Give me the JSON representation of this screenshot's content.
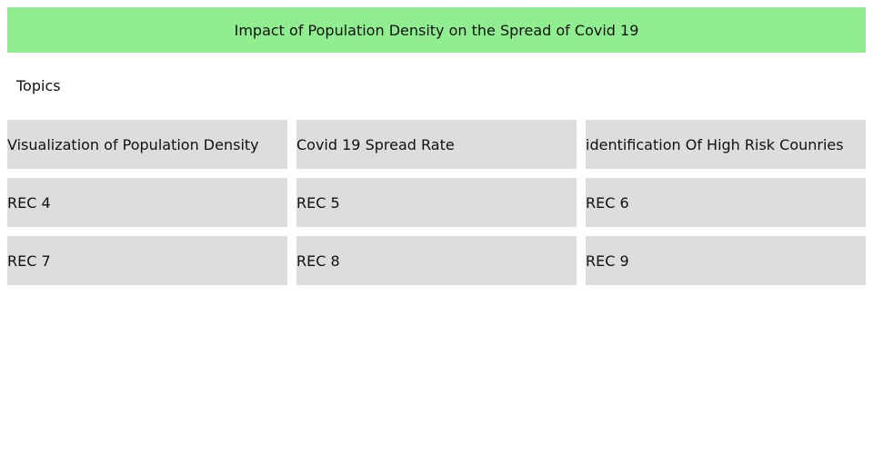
{
  "header": {
    "title": "Impact of Population Density on the Spread of Covid 19"
  },
  "section": {
    "label": "Topics"
  },
  "tiles": [
    {
      "label": "Visualization of Population Density"
    },
    {
      "label": "Covid 19 Spread Rate"
    },
    {
      "label": "identification Of High Risk Counries"
    },
    {
      "label": "REC 4"
    },
    {
      "label": "REC 5"
    },
    {
      "label": "REC 6"
    },
    {
      "label": "REC 7"
    },
    {
      "label": "REC 8"
    },
    {
      "label": "REC 9"
    }
  ],
  "colors": {
    "banner": "#90ee90",
    "tile": "#dddddd",
    "text": "#111111"
  }
}
